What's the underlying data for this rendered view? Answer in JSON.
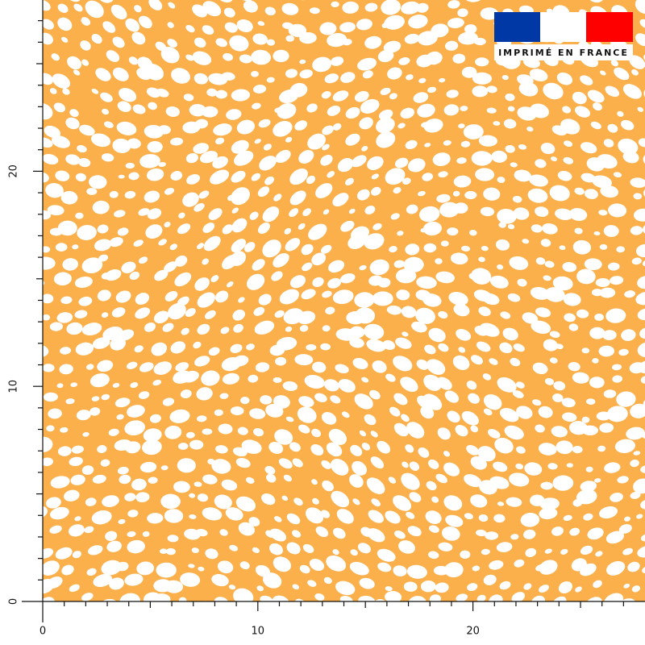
{
  "badge": {
    "text": "IMPRIMÉ EN FRANCE"
  },
  "ruler": {
    "x_labels": [
      0,
      10,
      20
    ],
    "y_labels": [
      0,
      10,
      20
    ]
  }
}
